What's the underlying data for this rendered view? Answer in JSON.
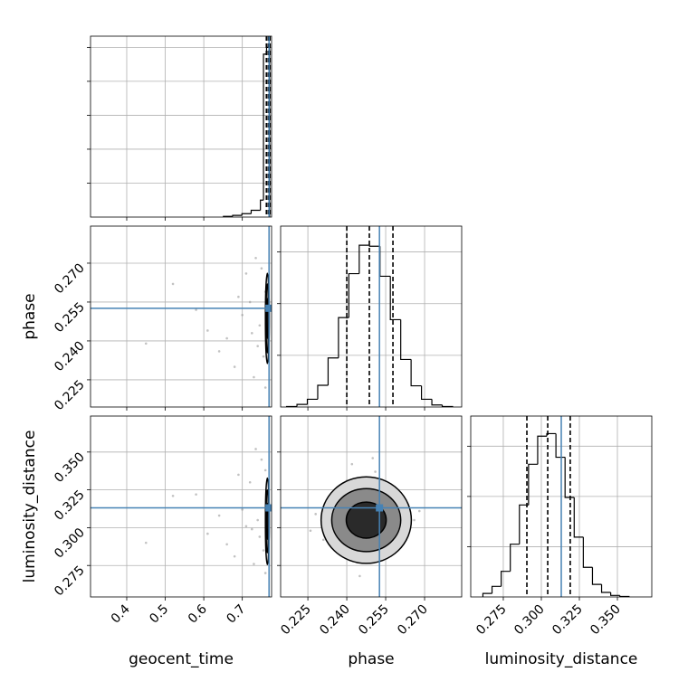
{
  "chart_data": [
    {
      "type": "histogram",
      "xlim": [
        0.306,
        0.776
      ],
      "ylim": [
        0,
        5.33
      ],
      "xticks": [
        0.4,
        0.5,
        0.6,
        0.7
      ],
      "yticks": [
        1,
        2,
        3,
        4,
        5
      ],
      "grid": true,
      "bins": [
        0.651,
        0.675,
        0.699,
        0.723,
        0.747,
        0.755,
        0.763,
        0.771
      ],
      "counts": [
        0.02,
        0.05,
        0.1,
        0.2,
        0.5,
        4.8,
        5.0
      ],
      "color": "#000000",
      "quantiles": [
        0.7625,
        0.7672,
        0.7719
      ],
      "truth": 0.7694,
      "truth_color": "#4682b4"
    },
    {
      "type": "scatter",
      "ylabel": "phase",
      "xlim": [
        0.306,
        0.776
      ],
      "ylim": [
        0.2145,
        0.2843
      ],
      "xticks": [
        0.4,
        0.5,
        0.6,
        0.7
      ],
      "yticks": [
        0.225,
        {
          "value": 0.24,
          "label": "0.240"
        },
        0.255,
        {
          "value": 0.27,
          "label": "0.270"
        }
      ],
      "grid": true,
      "x": [
        0.52,
        0.61,
        0.68,
        0.72,
        0.74,
        0.75,
        0.7,
        0.66,
        0.73,
        0.76,
        0.71,
        0.58,
        0.745,
        0.755,
        0.69,
        0.64,
        0.735,
        0.725,
        0.45,
        0.76
      ],
      "y": [
        0.262,
        0.244,
        0.23,
        0.255,
        0.238,
        0.268,
        0.25,
        0.241,
        0.226,
        0.259,
        0.266,
        0.252,
        0.246,
        0.234,
        0.257,
        0.236,
        0.272,
        0.243,
        0.239,
        0.222
      ],
      "contours": [
        {
          "cx": 0.765,
          "cy": 0.2487,
          "rx": 0.005,
          "ry": 0.0174
        },
        {
          "cx": 0.765,
          "cy": 0.2487,
          "rx": 0.0035,
          "ry": 0.0133
        },
        {
          "cx": 0.765,
          "cy": 0.2487,
          "rx": 0.002,
          "ry": 0.0077
        }
      ],
      "truth_x": 0.7694,
      "truth_y": 0.2526,
      "truth_color": "#4682b4"
    },
    {
      "type": "histogram",
      "xlim": [
        0.2145,
        0.2843
      ],
      "ylim": [
        0,
        3.5
      ],
      "xticks": [
        0.225,
        {
          "value": 0.24,
          "label": "0.240"
        },
        0.255,
        {
          "value": 0.27,
          "label": "0.270"
        }
      ],
      "yticks": [
        1,
        2,
        3
      ],
      "grid": true,
      "bins": [
        0.2168,
        0.2208,
        0.2248,
        0.2288,
        0.2328,
        0.2368,
        0.2408,
        0.2448,
        0.2488,
        0.2528,
        0.2568,
        0.2608,
        0.2648,
        0.2688,
        0.2728,
        0.2768,
        0.2808
      ],
      "counts": [
        0.01,
        0.05,
        0.15,
        0.42,
        0.95,
        1.73,
        2.58,
        3.13,
        3.11,
        2.53,
        1.69,
        0.92,
        0.41,
        0.15,
        0.04,
        0.01
      ],
      "color": "#000000",
      "quantiles": [
        0.24,
        0.2487,
        0.2578
      ],
      "truth": 0.2526,
      "truth_color": "#4682b4"
    },
    {
      "type": "scatter",
      "xlabel": "geocent_time",
      "ylabel": "luminosity_distance",
      "xlim": [
        0.306,
        0.776
      ],
      "ylim": [
        0.2542,
        0.3738
      ],
      "xticks": [
        0.4,
        0.5,
        0.6,
        0.7
      ],
      "yticks": [
        0.275,
        {
          "value": 0.3,
          "label": "0.300"
        },
        0.325,
        {
          "value": 0.35,
          "label": "0.350"
        }
      ],
      "grid": true,
      "x": [
        0.52,
        0.61,
        0.68,
        0.72,
        0.74,
        0.75,
        0.7,
        0.66,
        0.73,
        0.76,
        0.71,
        0.58,
        0.745,
        0.755,
        0.69,
        0.64,
        0.735,
        0.725,
        0.45,
        0.76
      ],
      "y": [
        0.321,
        0.296,
        0.281,
        0.33,
        0.305,
        0.345,
        0.312,
        0.289,
        0.276,
        0.338,
        0.301,
        0.322,
        0.294,
        0.285,
        0.335,
        0.308,
        0.352,
        0.299,
        0.29,
        0.27
      ],
      "contours": [
        {
          "cx": 0.765,
          "cy": 0.3042,
          "rx": 0.005,
          "ry": 0.0286
        },
        {
          "cx": 0.765,
          "cy": 0.3042,
          "rx": 0.0035,
          "ry": 0.0208
        },
        {
          "cx": 0.765,
          "cy": 0.3042,
          "rx": 0.002,
          "ry": 0.0119
        }
      ],
      "truth_x": 0.7694,
      "truth_y": 0.3131,
      "truth_color": "#4682b4"
    },
    {
      "type": "scatter",
      "xlabel": "phase",
      "xlim": [
        0.2145,
        0.2843
      ],
      "ylim": [
        0.2542,
        0.3738
      ],
      "xticks": [
        0.225,
        {
          "value": 0.24,
          "label": "0.240"
        },
        0.255,
        {
          "value": 0.27,
          "label": "0.270"
        }
      ],
      "yticks": [
        0.275,
        {
          "value": 0.3,
          "label": "0.300"
        },
        0.325,
        {
          "value": 0.35,
          "label": "0.350"
        }
      ],
      "grid": true,
      "x": [
        0.231,
        0.262,
        0.24,
        0.255,
        0.236,
        0.259,
        0.244,
        0.251,
        0.228,
        0.266,
        0.247,
        0.238,
        0.257,
        0.233,
        0.249,
        0.242,
        0.261,
        0.253,
        0.226,
        0.268,
        0.245,
        0.25,
        0.235,
        0.258,
        0.241
      ],
      "y": [
        0.292,
        0.318,
        0.331,
        0.283,
        0.301,
        0.296,
        0.277,
        0.337,
        0.309,
        0.305,
        0.322,
        0.288,
        0.327,
        0.316,
        0.279,
        0.342,
        0.291,
        0.3,
        0.298,
        0.311,
        0.268,
        0.346,
        0.324,
        0.315,
        0.286
      ],
      "contours": [
        {
          "cx": 0.2475,
          "cy": 0.305,
          "rx": 0.0174,
          "ry": 0.0286
        },
        {
          "cx": 0.2475,
          "cy": 0.305,
          "rx": 0.0133,
          "ry": 0.0208
        },
        {
          "cx": 0.2475,
          "cy": 0.305,
          "rx": 0.0077,
          "ry": 0.0119
        }
      ],
      "truth_x": 0.2526,
      "truth_y": 0.3131,
      "truth_color": "#4682b4"
    },
    {
      "type": "histogram",
      "xlabel": "luminosity_distance",
      "xlim": [
        0.2536,
        0.3726
      ],
      "ylim": [
        0,
        3.6
      ],
      "xticks": [
        0.275,
        {
          "value": 0.3,
          "label": "0.300"
        },
        0.325,
        {
          "value": 0.35,
          "label": "0.350"
        }
      ],
      "yticks": [
        1,
        2,
        3
      ],
      "grid": true,
      "bins": [
        0.2616,
        0.2676,
        0.2736,
        0.2796,
        0.2856,
        0.2916,
        0.2976,
        0.3036,
        0.3096,
        0.3156,
        0.3216,
        0.3276,
        0.3336,
        0.3396,
        0.3456,
        0.3516,
        0.3576
      ],
      "counts": [
        0.07,
        0.21,
        0.51,
        1.05,
        1.83,
        2.64,
        3.2,
        3.25,
        2.78,
        1.98,
        1.19,
        0.59,
        0.25,
        0.09,
        0.03,
        0.01
      ],
      "color": "#000000",
      "quantiles": [
        0.2905,
        0.3042,
        0.319
      ],
      "truth": 0.3131,
      "truth_color": "#4682b4"
    }
  ]
}
